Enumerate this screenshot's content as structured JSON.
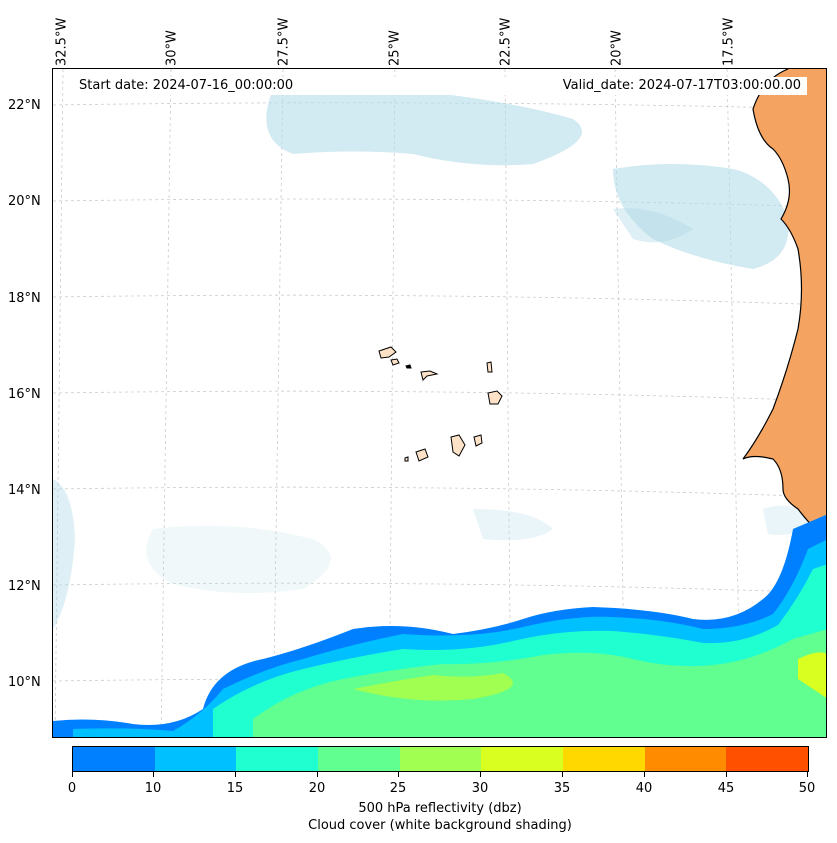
{
  "map": {
    "start_date": "Start date: 2024-07-16_00:00:00",
    "valid_date": "Valid_date: 2024-07-17T03:00:00.00",
    "lon_labels": [
      "32.5°W",
      "30°W",
      "27.5°W",
      "25°W",
      "22.5°W",
      "20°W",
      "17.5°W"
    ],
    "lat_labels": [
      "22°N",
      "20°N",
      "18°N",
      "16°N",
      "14°N",
      "12°N",
      "10°N"
    ]
  },
  "colorbar": {
    "colors": [
      "#0080ff",
      "#00c0ff",
      "#20ffd0",
      "#60ff90",
      "#a0ff50",
      "#d8ff20",
      "#ffd800",
      "#ff8c00",
      "#ff5000"
    ],
    "tick_labels": [
      "0",
      "10",
      "15",
      "20",
      "25",
      "30",
      "35",
      "40",
      "45",
      "50"
    ],
    "label": "500 hPa reflectivity (dbz)",
    "sublabel": "Cloud cover (white background shading)"
  },
  "colors": {
    "land": "#f4a460",
    "cloud": "#add8e6",
    "coast": "#000000"
  }
}
